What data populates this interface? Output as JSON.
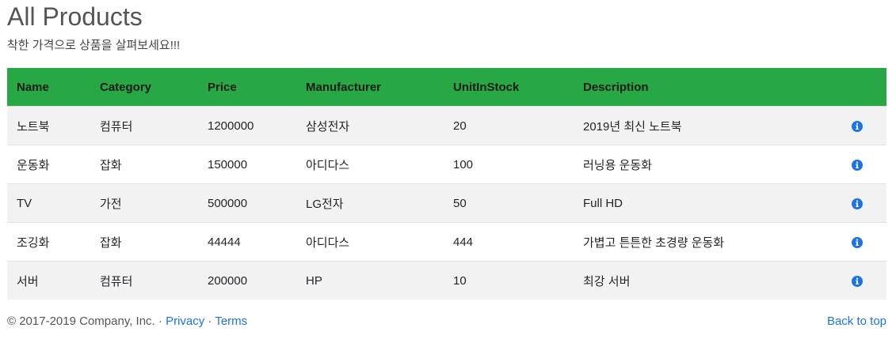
{
  "page": {
    "title": "All Products",
    "subtitle": "착한 가격으로 상품을 살펴보세요!!!"
  },
  "table": {
    "headers": [
      "Name",
      "Category",
      "Price",
      "Manufacturer",
      "UnitInStock",
      "Description"
    ],
    "rows": [
      [
        "노트북",
        "컴퓨터",
        "1200000",
        "삼성전자",
        "20",
        "2019년 최신 노트북"
      ],
      [
        "운동화",
        "잡화",
        "150000",
        "아디다스",
        "100",
        "러닝용 운동화"
      ],
      [
        "TV",
        "가전",
        "500000",
        "LG전자",
        "50",
        "Full HD"
      ],
      [
        "조깅화",
        "잡화",
        "44444",
        "아디다스",
        "444",
        "가볍고 튼튼한 초경량 운동화"
      ],
      [
        "서버",
        "컴퓨터",
        "200000",
        "HP",
        "10",
        "최강 서버"
      ]
    ],
    "row_action_icon": "info-circle-icon"
  },
  "footer": {
    "copyright": "© 2017-2019 Company, Inc. ·",
    "privacy": "Privacy",
    "separator": "·",
    "terms": "Terms",
    "back_to_top": "Back to top"
  },
  "colors": {
    "header_bg": "#28a745",
    "stripe_bg": "#f2f2f2",
    "link": "#1a73e8",
    "info_icon": "#1a73e8"
  }
}
